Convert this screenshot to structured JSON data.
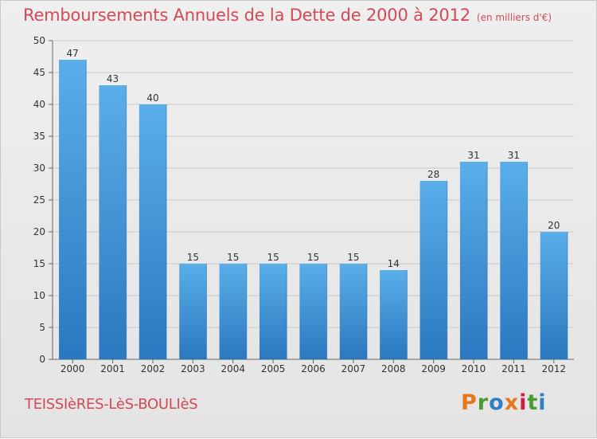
{
  "title": "Remboursements Annuels de la Dette de 2000 à 2012",
  "subtitle": "(en milliers d'€)",
  "commune": "TEISSIèRES-LèS-BOULIèS",
  "logo": {
    "text": "Proxiti",
    "colors": [
      "#e8771b",
      "#4a9c2e",
      "#2f7fc2",
      "#e8771b",
      "#d3203a",
      "#4a9c2e",
      "#2f7fc2"
    ]
  },
  "colors": {
    "bar": "#4a9fe0",
    "bar_dark": "#2f7fc2",
    "title": "#d24a57",
    "grid": "#c8c8c8"
  },
  "chart_data": {
    "type": "bar",
    "categories": [
      "2000",
      "2001",
      "2002",
      "2003",
      "2004",
      "2005",
      "2006",
      "2007",
      "2008",
      "2009",
      "2010",
      "2011",
      "2012"
    ],
    "values": [
      47,
      43,
      40,
      15,
      15,
      15,
      15,
      15,
      14,
      28,
      31,
      31,
      20
    ],
    "ylim": [
      0,
      50
    ],
    "yticks": [
      0,
      5,
      10,
      15,
      20,
      25,
      30,
      35,
      40,
      45,
      50
    ],
    "grid": true,
    "data_labels": true
  }
}
